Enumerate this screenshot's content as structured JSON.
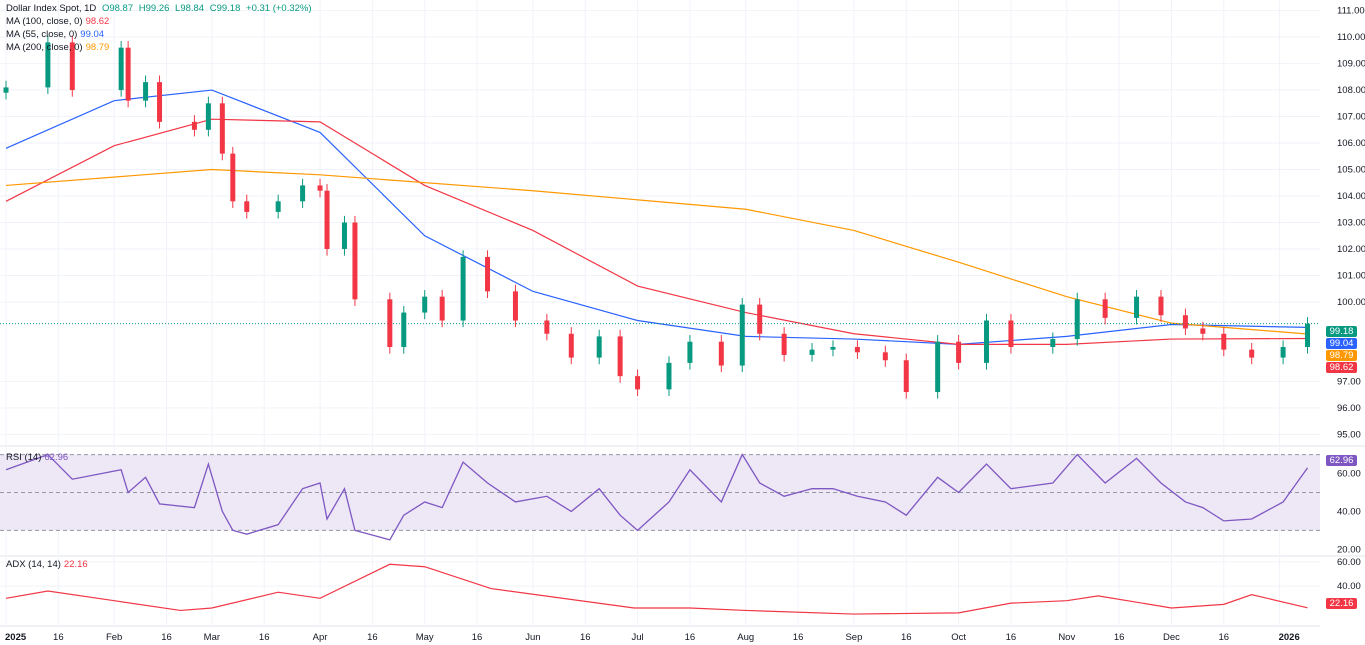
{
  "header": {
    "symbol": "Dollar Index Spot, 1D",
    "open": "O98.87",
    "high": "H99.26",
    "low": "L98.84",
    "close": "C99.18",
    "change": "+0.31 (+0.32%)"
  },
  "legends": {
    "ma100": {
      "label": "MA (100, close, 0)",
      "value": "98.62",
      "color": "#f23645"
    },
    "ma55": {
      "label": "MA (55, close, 0)",
      "value": "99.04",
      "color": "#2962ff"
    },
    "ma200": {
      "label": "MA (200, close, 0)",
      "value": "98.79",
      "color": "#ff9800"
    },
    "rsi": {
      "label": "RSI (14)",
      "value": "62.96",
      "color": "#7e57c2"
    },
    "adx": {
      "label": "ADX (14, 14)",
      "value": "22.16",
      "color": "#f23645"
    }
  },
  "price_tags": [
    {
      "value": "99.18",
      "color": "#089981"
    },
    {
      "value": "99.04",
      "color": "#2962ff"
    },
    {
      "value": "98.79",
      "color": "#ff9800"
    },
    {
      "value": "98.62",
      "color": "#f23645"
    }
  ],
  "colors": {
    "up": "#089981",
    "down": "#f23645",
    "grid": "#f0f3fa",
    "rsi_band": "#ede7f6"
  },
  "chart_data": {
    "type": "candlestick",
    "xlim": [
      "2025-01-01",
      "2026-01-12"
    ],
    "x_ticks": [
      {
        "date": "2025-01-01",
        "label": "2025",
        "bold": true
      },
      {
        "date": "2025-01-16",
        "label": "16"
      },
      {
        "date": "2025-02-01",
        "label": "Feb"
      },
      {
        "date": "2025-02-16",
        "label": "16"
      },
      {
        "date": "2025-03-01",
        "label": "Mar"
      },
      {
        "date": "2025-03-16",
        "label": "16"
      },
      {
        "date": "2025-04-01",
        "label": "Apr"
      },
      {
        "date": "2025-04-16",
        "label": "16"
      },
      {
        "date": "2025-05-01",
        "label": "May"
      },
      {
        "date": "2025-05-16",
        "label": "16"
      },
      {
        "date": "2025-06-01",
        "label": "Jun"
      },
      {
        "date": "2025-06-16",
        "label": "16"
      },
      {
        "date": "2025-07-01",
        "label": "Jul"
      },
      {
        "date": "2025-07-16",
        "label": "16"
      },
      {
        "date": "2025-08-01",
        "label": "Aug"
      },
      {
        "date": "2025-08-16",
        "label": "16"
      },
      {
        "date": "2025-09-01",
        "label": "Sep"
      },
      {
        "date": "2025-09-16",
        "label": "16"
      },
      {
        "date": "2025-10-01",
        "label": "Oct"
      },
      {
        "date": "2025-10-16",
        "label": "16"
      },
      {
        "date": "2025-11-01",
        "label": "Nov"
      },
      {
        "date": "2025-11-16",
        "label": "16"
      },
      {
        "date": "2025-12-01",
        "label": "Dec"
      },
      {
        "date": "2025-12-16",
        "label": "16"
      },
      {
        "date": "2026-01-01",
        "label": "2026",
        "bold": true
      }
    ],
    "price": {
      "ylim": [
        94.6,
        111.4
      ],
      "y_ticks": [
        "111.00",
        "110.00",
        "109.00",
        "108.00",
        "107.00",
        "106.00",
        "105.00",
        "104.00",
        "103.00",
        "102.00",
        "101.00",
        "100.00",
        "97.00",
        "96.00",
        "95.00"
      ],
      "dates": [
        "2025-01-01",
        "2025-01-13",
        "2025-01-20",
        "2025-02-03",
        "2025-02-05",
        "2025-02-10",
        "2025-02-14",
        "2025-02-24",
        "2025-02-28",
        "2025-03-04",
        "2025-03-07",
        "2025-03-11",
        "2025-03-20",
        "2025-03-27",
        "2025-04-01",
        "2025-04-03",
        "2025-04-08",
        "2025-04-11",
        "2025-04-21",
        "2025-04-25",
        "2025-05-01",
        "2025-05-06",
        "2025-05-12",
        "2025-05-19",
        "2025-05-27",
        "2025-06-05",
        "2025-06-12",
        "2025-06-20",
        "2025-06-26",
        "2025-07-01",
        "2025-07-10",
        "2025-07-16",
        "2025-07-25",
        "2025-07-31",
        "2025-08-05",
        "2025-08-12",
        "2025-08-20",
        "2025-08-26",
        "2025-09-02",
        "2025-09-10",
        "2025-09-16",
        "2025-09-25",
        "2025-10-01",
        "2025-10-09",
        "2025-10-16",
        "2025-10-28",
        "2025-11-04",
        "2025-11-12",
        "2025-11-21",
        "2025-11-28",
        "2025-12-05",
        "2025-12-10",
        "2025-12-16",
        "2025-12-24",
        "2026-01-02",
        "2026-01-09"
      ],
      "close": [
        108.1,
        109.8,
        108.0,
        109.6,
        107.6,
        108.3,
        106.8,
        106.5,
        107.5,
        105.6,
        103.8,
        103.4,
        103.8,
        104.4,
        104.2,
        102.0,
        103.0,
        100.1,
        98.3,
        99.6,
        100.2,
        99.3,
        101.7,
        100.4,
        99.3,
        98.8,
        97.9,
        98.7,
        97.2,
        96.7,
        97.7,
        98.5,
        97.6,
        99.9,
        98.8,
        98.0,
        98.2,
        98.3,
        98.1,
        97.8,
        96.6,
        98.5,
        97.7,
        99.3,
        98.3,
        98.6,
        100.1,
        99.4,
        100.2,
        99.5,
        99.0,
        98.8,
        98.2,
        97.9,
        98.3,
        99.18
      ]
    },
    "ma": [
      {
        "name": "MA (55, close, 0)",
        "color": "#2962ff",
        "dates": [
          "2025-01-01",
          "2025-02-01",
          "2025-03-01",
          "2025-04-01",
          "2025-05-01",
          "2025-06-01",
          "2025-07-01",
          "2025-08-01",
          "2025-09-01",
          "2025-10-01",
          "2025-11-01",
          "2025-12-01",
          "2026-01-09"
        ],
        "values": [
          105.8,
          107.6,
          108.0,
          106.4,
          102.5,
          100.4,
          99.3,
          98.7,
          98.6,
          98.4,
          98.7,
          99.15,
          99.04
        ]
      },
      {
        "name": "MA (100, close, 0)",
        "color": "#f23645",
        "dates": [
          "2025-01-01",
          "2025-02-01",
          "2025-03-01",
          "2025-04-01",
          "2025-05-01",
          "2025-06-01",
          "2025-07-01",
          "2025-08-01",
          "2025-09-01",
          "2025-10-01",
          "2025-11-01",
          "2025-12-01",
          "2026-01-09"
        ],
        "values": [
          103.8,
          105.9,
          106.9,
          106.8,
          104.4,
          102.7,
          100.6,
          99.6,
          98.8,
          98.4,
          98.4,
          98.6,
          98.62
        ]
      },
      {
        "name": "MA (200, close, 0)",
        "color": "#ff9800",
        "dates": [
          "2025-01-01",
          "2025-03-01",
          "2025-04-01",
          "2025-06-01",
          "2025-08-01",
          "2025-09-01",
          "2025-10-01",
          "2025-11-01",
          "2025-12-01",
          "2026-01-09"
        ],
        "values": [
          104.4,
          105.0,
          104.8,
          104.2,
          103.5,
          102.7,
          101.5,
          100.2,
          99.2,
          98.79
        ]
      }
    ],
    "rsi": {
      "ylim": [
        17,
        74
      ],
      "levels": [
        70,
        50,
        30
      ],
      "y_ticks": [
        "60.00",
        "40.00",
        "20.00"
      ],
      "values": [
        62,
        70,
        57,
        62,
        50,
        58,
        44,
        42,
        65,
        40,
        30,
        28,
        33,
        52,
        55,
        36,
        52,
        30,
        25,
        38,
        45,
        42,
        66,
        55,
        45,
        48,
        40,
        52,
        38,
        30,
        45,
        62,
        45,
        70,
        55,
        48,
        52,
        52,
        48,
        45,
        38,
        58,
        50,
        65,
        52,
        55,
        70,
        55,
        68,
        55,
        45,
        42,
        35,
        36,
        45,
        62.96
      ]
    },
    "adx": {
      "ylim": [
        8,
        64
      ],
      "y_ticks": [
        "60.00",
        "40.00"
      ],
      "dates": [
        "2025-01-01",
        "2025-01-13",
        "2025-02-01",
        "2025-02-20",
        "2025-03-01",
        "2025-03-20",
        "2025-04-01",
        "2025-04-21",
        "2025-05-01",
        "2025-05-20",
        "2025-06-30",
        "2025-07-16",
        "2025-08-01",
        "2025-09-01",
        "2025-10-01",
        "2025-10-16",
        "2025-11-01",
        "2025-11-10",
        "2025-12-01",
        "2025-12-16",
        "2025-12-24",
        "2026-01-09"
      ],
      "values": [
        30,
        36,
        28,
        20,
        22,
        35,
        30,
        58,
        56,
        38,
        22,
        22,
        20,
        17,
        18,
        26,
        28,
        32,
        22,
        25,
        33,
        22.16
      ]
    }
  }
}
